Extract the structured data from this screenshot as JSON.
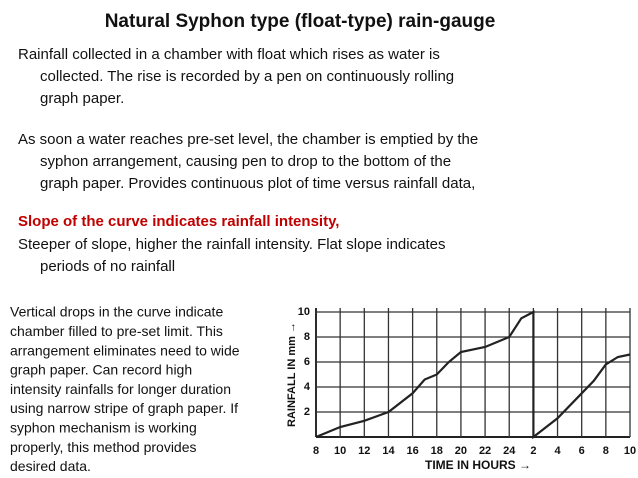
{
  "header": {
    "title": "Natural Syphon type (float-type) rain-gauge"
  },
  "paragraphs": [
    {
      "lines": [
        "Rainfall collected in a chamber with float which rises as water is",
        "collected. The rise is recorded by a pen on continuously rolling",
        "graph paper."
      ],
      "color": "#111111",
      "bold": false
    },
    {
      "lines": [
        "As soon a water reaches pre-set level, the chamber is emptied by the",
        "syphon arrangement, causing pen to drop to the bottom of the",
        "graph paper. Provides  continuous plot of time versus rainfall data,"
      ],
      "color": "#111111",
      "bold": false
    },
    {
      "lines": [
        "Slope of the curve indicates rainfall intensity,"
      ],
      "color": "#c00000",
      "bold": true
    },
    {
      "lines": [
        "Steeper of slope, higher the rainfall intensity. Flat slope indicates",
        "periods of no rainfall"
      ],
      "color": "#111111",
      "bold": false
    }
  ],
  "note": {
    "lines": [
      "Vertical drops in the curve indicate",
      "chamber filled to pre-set limit. This",
      "arrangement eliminates need to wide",
      "graph paper. Can record high",
      "intensity rainfalls for longer duration",
      "using narrow stripe of graph paper. If",
      "syphon mechanism is working",
      "properly, this method provides",
      "desired data."
    ]
  },
  "chart_data": {
    "type": "line",
    "x_label": "TIME IN HOURS →",
    "y_label": "RAINFALL IN mm →",
    "x": [
      8,
      10,
      12,
      14,
      16,
      17,
      18,
      19,
      20,
      22,
      24,
      25,
      26,
      26,
      28,
      30,
      31,
      32,
      33,
      34
    ],
    "values": [
      0,
      0.8,
      1.3,
      2,
      3.5,
      4.6,
      5,
      6,
      6.8,
      7.2,
      8,
      9.5,
      10,
      0,
      1.5,
      3.5,
      4.5,
      5.8,
      6.4,
      6.6
    ],
    "color": "#222222",
    "grid": true,
    "xlim": [
      8,
      34
    ],
    "ylim": [
      0,
      10
    ],
    "xticks": [
      8,
      10,
      12,
      14,
      16,
      18,
      20,
      22,
      24,
      {
        "value": 26,
        "label": "2"
      },
      {
        "value": 28,
        "label": "4"
      },
      {
        "value": 30,
        "label": "6"
      },
      {
        "value": 32,
        "label": "8"
      },
      {
        "value": 34,
        "label": "10"
      }
    ],
    "yticks": [
      2,
      4,
      6,
      8,
      10
    ]
  }
}
